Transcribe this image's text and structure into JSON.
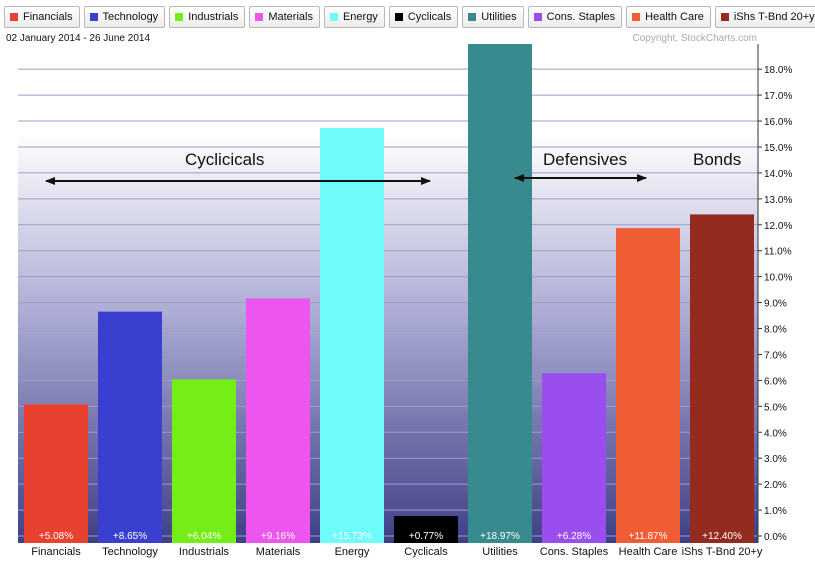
{
  "date_range": "02 January 2014 - 26 June 2014",
  "copyright": "Copyright, StockCharts.com",
  "legend": [
    {
      "label": "Financials",
      "color": "#e8412f"
    },
    {
      "label": "Technology",
      "color": "#3a3fcf"
    },
    {
      "label": "Industrials",
      "color": "#74ee16"
    },
    {
      "label": "Materials",
      "color": "#ec56ef"
    },
    {
      "label": "Energy",
      "color": "#6ffafb"
    },
    {
      "label": "Cyclicals",
      "color": "#000000"
    },
    {
      "label": "Utilities",
      "color": "#378a8e"
    },
    {
      "label": "Cons. Staples",
      "color": "#9a4ef0"
    },
    {
      "label": "Health Care",
      "color": "#ee5d33"
    },
    {
      "label": "iShs T-Bnd 20+y",
      "color": "#952a1e"
    }
  ],
  "annotations": {
    "cyclicals": "Cyclicicals",
    "defensives": "Defensives",
    "bonds": "Bonds"
  },
  "chart_data": {
    "type": "bar",
    "categories": [
      "Financials",
      "Technology",
      "Industrials",
      "Materials",
      "Energy",
      "Cyclicals",
      "Utilities",
      "Cons. Staples",
      "Health Care",
      "iShs T-Bnd 20+y"
    ],
    "values": [
      5.08,
      8.65,
      6.04,
      9.16,
      15.73,
      0.77,
      18.97,
      6.28,
      11.87,
      12.4
    ],
    "value_labels": [
      "+5.08%",
      "+8.65%",
      "+6.04%",
      "+9.16%",
      "+15.73%",
      "+0.77%",
      "+18.97%",
      "+6.28%",
      "+11.87%",
      "+12.40%"
    ],
    "colors": [
      "#e8412f",
      "#3a3fcf",
      "#74ee16",
      "#ec56ef",
      "#6ffafb",
      "#000000",
      "#378a8e",
      "#9a4ef0",
      "#ee5d33",
      "#952a1e"
    ],
    "y_ticks": [
      "0.0%",
      "1.0%",
      "2.0%",
      "3.0%",
      "4.0%",
      "5.0%",
      "6.0%",
      "7.0%",
      "8.0%",
      "9.0%",
      "10.0%",
      "11.0%",
      "12.0%",
      "13.0%",
      "14.0%",
      "15.0%",
      "16.0%",
      "17.0%",
      "18.0%"
    ],
    "ylim": [
      0,
      18.97
    ],
    "title": "",
    "xlabel": "",
    "ylabel": "",
    "grid": true
  }
}
